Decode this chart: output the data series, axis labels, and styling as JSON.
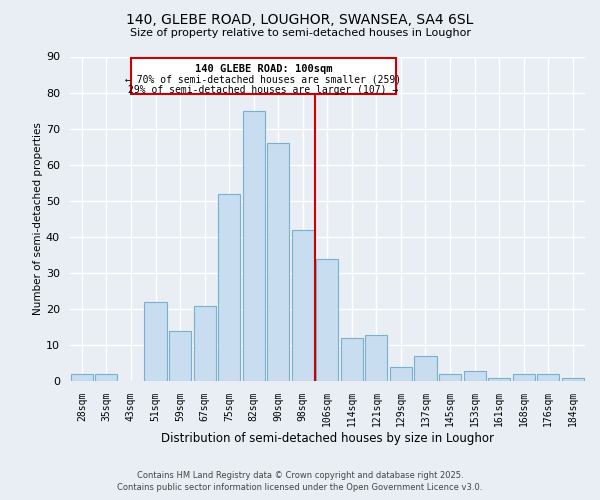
{
  "title_line1": "140, GLEBE ROAD, LOUGHOR, SWANSEA, SA4 6SL",
  "title_line2": "Size of property relative to semi-detached houses in Loughor",
  "xlabel": "Distribution of semi-detached houses by size in Loughor",
  "ylabel": "Number of semi-detached properties",
  "bar_labels": [
    "28sqm",
    "35sqm",
    "43sqm",
    "51sqm",
    "59sqm",
    "67sqm",
    "75sqm",
    "82sqm",
    "90sqm",
    "98sqm",
    "106sqm",
    "114sqm",
    "121sqm",
    "129sqm",
    "137sqm",
    "145sqm",
    "153sqm",
    "161sqm",
    "168sqm",
    "176sqm",
    "184sqm"
  ],
  "bar_values": [
    2,
    2,
    0,
    22,
    14,
    21,
    52,
    75,
    66,
    42,
    34,
    12,
    13,
    4,
    7,
    2,
    3,
    1,
    2,
    2,
    1
  ],
  "bar_color": "#c8ddef",
  "bar_edge_color": "#7ab0ce",
  "vline_color": "#cc0000",
  "annotation_title": "140 GLEBE ROAD: 100sqm",
  "annotation_line1": "← 70% of semi-detached houses are smaller (259)",
  "annotation_line2": "29% of semi-detached houses are larger (107) →",
  "annotation_box_color": "#ffffff",
  "annotation_box_edge": "#cc0000",
  "ylim": [
    0,
    90
  ],
  "yticks": [
    0,
    10,
    20,
    30,
    40,
    50,
    60,
    70,
    80,
    90
  ],
  "background_color": "#e8eef4",
  "grid_color": "#ffffff",
  "footer_line1": "Contains HM Land Registry data © Crown copyright and database right 2025.",
  "footer_line2": "Contains public sector information licensed under the Open Government Licence v3.0."
}
